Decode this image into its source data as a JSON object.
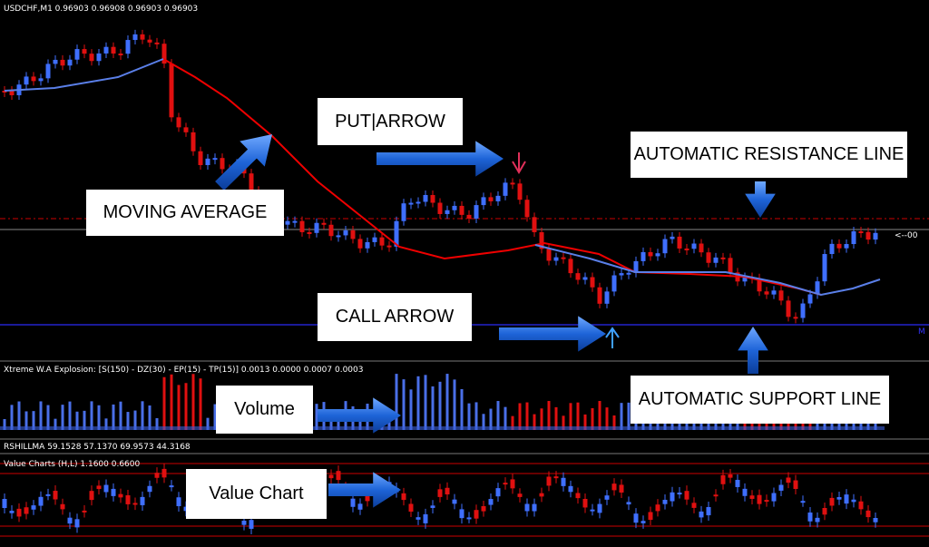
{
  "header": {
    "symbol": "USDCHF,M1  0.96903 0.96908 0.96903 0.96903",
    "marker": "<--00",
    "corner": "M"
  },
  "panels": {
    "explosion": "Xtreme W.A Explosion: [S(150) - DZ(30) - EP(15) - TP(15)] 0.0013 0.0000 0.0007 0.0003",
    "rsi": "RSHILLMA 59.1528 57.1370 69.9573 44.3168",
    "value_chart": "Value Charts (H,L) 1.1600 0.6600"
  },
  "annotations": {
    "moving_average": "MOVING AVERAGE",
    "put_arrow": "PUT|ARROW",
    "resistance": "AUTOMATIC RESISTANCE LINE",
    "call_arrow": "CALL ARROW",
    "volume": "Volume",
    "support": "AUTOMATIC SUPPORT LINE",
    "value_chart": "Value Chart"
  }
}
